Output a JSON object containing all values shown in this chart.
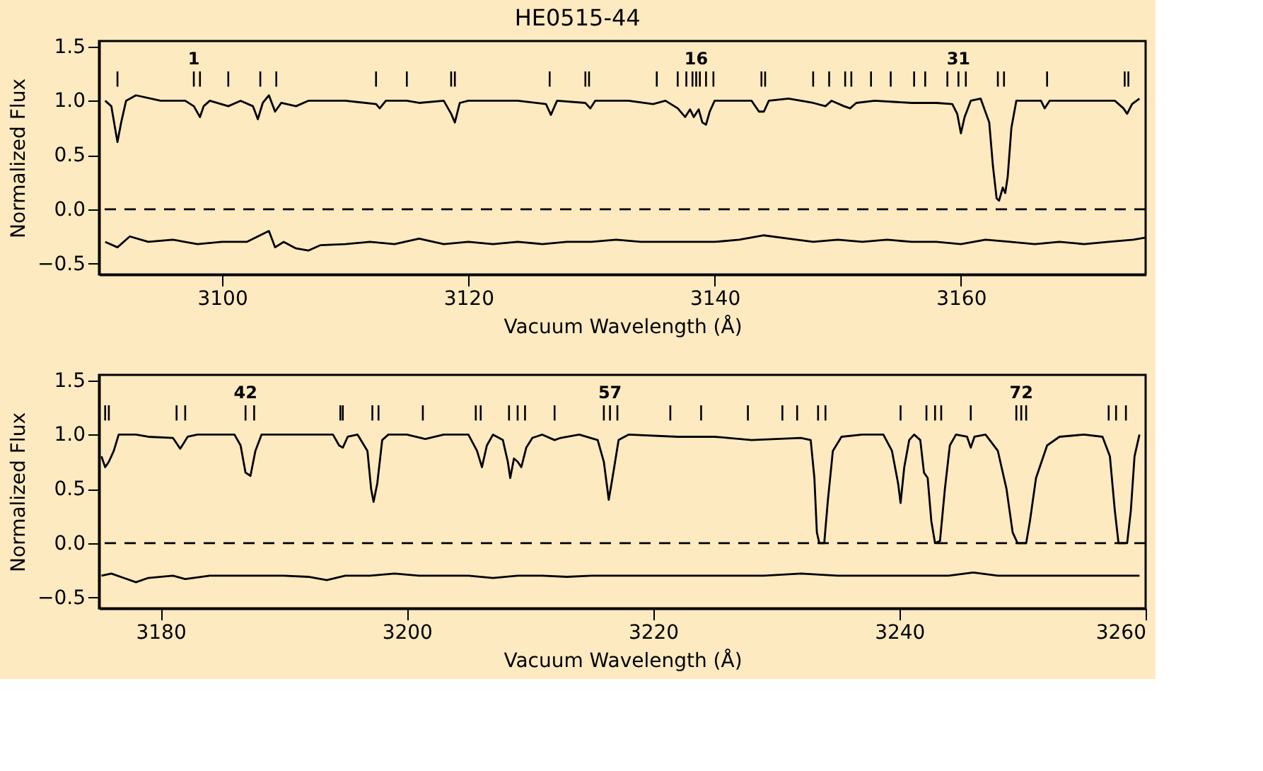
{
  "chart_data": [
    {
      "type": "line",
      "title": "HE0515-44",
      "xlabel": "Vacuum Wavelength (Å)",
      "ylabel": "Normalized Flux",
      "xlim": [
        3090,
        3175
      ],
      "xticks": [
        3100,
        3120,
        3140,
        3160
      ],
      "ylim": [
        -0.6,
        1.55
      ],
      "yticks": [
        {
          "value": -0.5,
          "label": "−0.5"
        },
        {
          "value": 0,
          "label": "0.0"
        },
        {
          "value": 0.5,
          "label": "0.5"
        },
        {
          "value": 1,
          "label": "1.0"
        },
        {
          "value": 1.5,
          "label": "1.5"
        }
      ],
      "grid": false,
      "line_style": "solid",
      "series": [
        {
          "color": "#000000",
          "x": [
            3090.5,
            3091,
            3091.3,
            3091.5,
            3091.8,
            3092.2,
            3093,
            3095,
            3097,
            3097.7,
            3098.2,
            3098.5,
            3099,
            3100.5,
            3101.5,
            3102.5,
            3102.9,
            3103.3,
            3103.8,
            3104.3,
            3104.8,
            3106,
            3107,
            3110,
            3112.5,
            3112.8,
            3113.3,
            3115,
            3116,
            3118,
            3118.6,
            3118.9,
            3119.3,
            3120,
            3124,
            3126.3,
            3126.7,
            3127.2,
            3129.5,
            3129.9,
            3130.3,
            3133,
            3135,
            3136,
            3137,
            3137.6,
            3138,
            3138.3,
            3138.7,
            3139,
            3139.3,
            3139.6,
            3140,
            3143,
            3143.6,
            3144,
            3144.4,
            3146,
            3148,
            3149,
            3149.5,
            3150.5,
            3151,
            3151.5,
            3153,
            3156,
            3158,
            3159.3,
            3159.7,
            3160,
            3160.3,
            3160.8,
            3161.6,
            3162.3,
            3162.6,
            3162.9,
            3163.1,
            3163.4,
            3163.6,
            3163.8,
            3164.1,
            3164.5,
            3166.5,
            3166.8,
            3167.2,
            3170,
            3172.5,
            3173.2,
            3173.5,
            3173.9,
            3174.5
          ],
          "values": [
            1.0,
            0.95,
            0.75,
            0.62,
            0.8,
            1.0,
            1.05,
            1.0,
            1.0,
            0.95,
            0.85,
            0.95,
            1.0,
            0.95,
            1.0,
            0.95,
            0.83,
            0.98,
            1.05,
            0.9,
            0.98,
            0.95,
            1.0,
            1.0,
            0.97,
            0.93,
            1.0,
            1.0,
            0.98,
            1.0,
            0.88,
            0.8,
            0.98,
            1.0,
            1.0,
            0.97,
            0.87,
            1.0,
            0.98,
            0.93,
            1.0,
            1.0,
            0.97,
            1.0,
            0.93,
            0.85,
            0.92,
            0.85,
            0.92,
            0.8,
            0.78,
            0.9,
            1.0,
            1.0,
            0.9,
            0.9,
            1.0,
            1.02,
            0.98,
            0.95,
            1.0,
            0.95,
            0.93,
            0.98,
            1.0,
            0.98,
            0.98,
            0.97,
            0.88,
            0.7,
            0.85,
            1.0,
            1.02,
            0.8,
            0.4,
            0.1,
            0.08,
            0.2,
            0.15,
            0.3,
            0.75,
            1.0,
            1.0,
            0.93,
            1.0,
            1.0,
            1.0,
            0.93,
            0.88,
            0.97,
            1.02
          ]
        },
        {
          "color": "#000000",
          "x": [
            3090.5,
            3091.5,
            3092.5,
            3094,
            3096,
            3098,
            3100,
            3102,
            3103.8,
            3104.3,
            3105,
            3106,
            3107,
            3108,
            3110,
            3112,
            3114,
            3116,
            3118,
            3120,
            3122,
            3124,
            3126,
            3128,
            3130,
            3132,
            3134,
            3136,
            3138,
            3140,
            3142,
            3144,
            3146,
            3148,
            3150,
            3152,
            3154,
            3156,
            3158,
            3160,
            3162,
            3164,
            3166,
            3168,
            3170,
            3172,
            3174,
            3175
          ],
          "values": [
            -0.3,
            -0.35,
            -0.25,
            -0.3,
            -0.28,
            -0.32,
            -0.3,
            -0.3,
            -0.2,
            -0.35,
            -0.3,
            -0.36,
            -0.38,
            -0.33,
            -0.32,
            -0.3,
            -0.32,
            -0.27,
            -0.32,
            -0.3,
            -0.32,
            -0.3,
            -0.32,
            -0.3,
            -0.3,
            -0.28,
            -0.3,
            -0.3,
            -0.3,
            -0.3,
            -0.28,
            -0.24,
            -0.27,
            -0.3,
            -0.28,
            -0.3,
            -0.28,
            -0.3,
            -0.3,
            -0.32,
            -0.28,
            -0.3,
            -0.32,
            -0.3,
            -0.32,
            -0.3,
            -0.28,
            -0.26
          ]
        },
        {
          "type": "bar",
          "color": "#000000",
          "x": [
            3091.5,
            3097.7,
            3098.2,
            3100.5,
            3103.1,
            3104.4,
            3112.5,
            3115.0,
            3118.6,
            3118.9,
            3126.6,
            3129.5,
            3129.8,
            3135.3,
            3137.0,
            3137.7,
            3138.2,
            3138.5,
            3138.8,
            3139.3,
            3139.9,
            3143.8,
            3144.1,
            3148.0,
            3149.3,
            3150.6,
            3151.1,
            3152.7,
            3154.3,
            3156.2,
            3157.1,
            3158.9,
            3159.8,
            3160.4,
            3163.0,
            3163.5,
            3167.0,
            3173.3,
            3173.6
          ],
          "values": [
            0.14,
            0.14,
            0.14,
            0.14,
            0.14,
            0.14,
            0.14,
            0.14,
            0.14,
            0.14,
            0.14,
            0.14,
            0.14,
            0.14,
            0.14,
            0.14,
            0.14,
            0.14,
            0.14,
            0.14,
            0.14,
            0.14,
            0.14,
            0.14,
            0.14,
            0.14,
            0.14,
            0.14,
            0.14,
            0.14,
            0.14,
            0.14,
            0.14,
            0.14,
            0.14,
            0.14,
            0.14,
            0.14,
            0.14
          ],
          "base": [
            1.13,
            1.13,
            1.13,
            1.13,
            1.13,
            1.13,
            1.13,
            1.13,
            1.13,
            1.13,
            1.13,
            1.13,
            1.13,
            1.13,
            1.13,
            1.13,
            1.13,
            1.13,
            1.13,
            1.13,
            1.13,
            1.13,
            1.13,
            1.13,
            1.13,
            1.13,
            1.13,
            1.13,
            1.13,
            1.13,
            1.13,
            1.13,
            1.13,
            1.13,
            1.13,
            1.13,
            1.13,
            1.13,
            1.13
          ]
        }
      ],
      "ref_lines": [
        {
          "axis": "y",
          "value": 0,
          "label": null,
          "color": "#000000",
          "line_style": "dashed"
        }
      ],
      "annotations": [
        {
          "text": "1",
          "x": 3097.7,
          "y": 1.27
        },
        {
          "text": "16",
          "x": 3138.5,
          "y": 1.27
        },
        {
          "text": "31",
          "x": 3159.8,
          "y": 1.27
        }
      ]
    },
    {
      "type": "line",
      "xlabel": "Vacuum Wavelength (Å)",
      "ylabel": "Normalized Flux",
      "xlim": [
        3175,
        3260
      ],
      "xticks": [
        3180,
        3200,
        3220,
        3240,
        3260
      ],
      "ylim": [
        -0.6,
        1.55
      ],
      "yticks": [
        {
          "value": -0.5,
          "label": "−0.5"
        },
        {
          "value": 0,
          "label": "0.0"
        },
        {
          "value": 0.5,
          "label": "0.5"
        },
        {
          "value": 1,
          "label": "1.0"
        },
        {
          "value": 1.5,
          "label": "1.5"
        }
      ],
      "grid": false,
      "line_style": "solid",
      "series": [
        {
          "color": "#000000",
          "x": [
            3175.2,
            3175.5,
            3175.8,
            3176.2,
            3176.6,
            3178,
            3179,
            3181,
            3181.6,
            3182.2,
            3183,
            3186,
            3186.5,
            3186.9,
            3187.3,
            3187.7,
            3188.2,
            3191,
            3194,
            3194.5,
            3194.8,
            3195.2,
            3196,
            3196.8,
            3197.1,
            3197.3,
            3197.6,
            3198,
            3198.5,
            3200,
            3201.5,
            3203,
            3205,
            3205.7,
            3206.1,
            3206.5,
            3207,
            3207.8,
            3208.2,
            3208.4,
            3208.7,
            3209.0,
            3209.3,
            3209.7,
            3210.2,
            3211,
            3212,
            3212.5,
            3214,
            3215.5,
            3216,
            3216.4,
            3216.7,
            3217.2,
            3218,
            3222,
            3225,
            3228,
            3232,
            3232.8,
            3233.1,
            3233.3,
            3233.5,
            3233.9,
            3234.2,
            3234.6,
            3235.3,
            3237,
            3238.7,
            3239.4,
            3239.9,
            3240.1,
            3240.4,
            3240.8,
            3241.2,
            3241.7,
            3242.0,
            3242.3,
            3242.6,
            3242.9,
            3243.3,
            3243.7,
            3244.1,
            3244.6,
            3245.5,
            3245.8,
            3246.1,
            3247,
            3248,
            3248.7,
            3249.2,
            3249.6,
            3250.3,
            3250.6,
            3251.1,
            3252,
            3253,
            3255,
            3256.5,
            3257.1,
            3257.5,
            3257.8,
            3258.5,
            3258.8,
            3259.1,
            3259.5
          ],
          "values": [
            0.8,
            0.7,
            0.75,
            0.85,
            1.0,
            1.0,
            0.98,
            0.97,
            0.87,
            0.98,
            1.0,
            1.0,
            0.9,
            0.65,
            0.62,
            0.85,
            1.0,
            1.0,
            1.0,
            0.9,
            0.88,
            0.98,
            1.0,
            0.85,
            0.5,
            0.38,
            0.55,
            0.95,
            1.0,
            1.0,
            0.96,
            1.0,
            1.0,
            0.85,
            0.7,
            0.9,
            1.0,
            0.95,
            0.75,
            0.6,
            0.78,
            0.75,
            0.7,
            0.88,
            0.97,
            1.0,
            0.95,
            0.97,
            1.0,
            0.95,
            0.75,
            0.4,
            0.6,
            0.95,
            1.0,
            0.98,
            0.98,
            0.95,
            0.97,
            0.95,
            0.6,
            0.1,
            0.0,
            0.0,
            0.4,
            0.85,
            0.98,
            1.0,
            1.0,
            0.85,
            0.55,
            0.37,
            0.7,
            0.95,
            1.0,
            0.95,
            0.65,
            0.6,
            0.2,
            0.0,
            0.02,
            0.5,
            0.9,
            1.0,
            0.98,
            0.88,
            0.98,
            1.0,
            0.85,
            0.5,
            0.1,
            0.0,
            0.0,
            0.2,
            0.6,
            0.9,
            0.98,
            1.0,
            0.98,
            0.8,
            0.3,
            0.0,
            0.0,
            0.3,
            0.8,
            1.0
          ]
        },
        {
          "color": "#000000",
          "x": [
            3175.2,
            3176,
            3177,
            3178,
            3179,
            3181,
            3182,
            3184,
            3186,
            3188,
            3190,
            3192,
            3193.5,
            3195,
            3197,
            3199,
            3201,
            3203,
            3205,
            3207,
            3209,
            3211,
            3213,
            3215,
            3217,
            3220,
            3223,
            3226,
            3229,
            3232,
            3235,
            3238,
            3241,
            3244,
            3246,
            3248,
            3251,
            3254,
            3257,
            3259.5
          ],
          "values": [
            -0.3,
            -0.28,
            -0.32,
            -0.36,
            -0.32,
            -0.3,
            -0.33,
            -0.3,
            -0.3,
            -0.3,
            -0.3,
            -0.31,
            -0.34,
            -0.3,
            -0.3,
            -0.28,
            -0.3,
            -0.3,
            -0.3,
            -0.32,
            -0.3,
            -0.3,
            -0.31,
            -0.3,
            -0.3,
            -0.3,
            -0.3,
            -0.3,
            -0.3,
            -0.28,
            -0.3,
            -0.3,
            -0.3,
            -0.3,
            -0.27,
            -0.3,
            -0.3,
            -0.3,
            -0.3,
            -0.3
          ]
        },
        {
          "type": "bar",
          "color": "#000000",
          "x": [
            3175.5,
            3175.8,
            3181.3,
            3182.0,
            3186.9,
            3187.6,
            3194.6,
            3194.8,
            3197.2,
            3197.7,
            3201.3,
            3205.6,
            3206.0,
            3208.3,
            3209.0,
            3209.6,
            3212.0,
            3216.0,
            3216.5,
            3217.1,
            3221.4,
            3223.9,
            3227.7,
            3230.5,
            3231.7,
            3233.4,
            3234.0,
            3240.1,
            3242.2,
            3242.9,
            3243.4,
            3245.8,
            3249.5,
            3249.9,
            3250.3,
            3257.0,
            3257.6,
            3258.4
          ],
          "values": [
            0.14,
            0.14,
            0.14,
            0.14,
            0.14,
            0.14,
            0.14,
            0.14,
            0.14,
            0.14,
            0.14,
            0.14,
            0.14,
            0.14,
            0.14,
            0.14,
            0.14,
            0.14,
            0.14,
            0.14,
            0.14,
            0.14,
            0.14,
            0.14,
            0.14,
            0.14,
            0.14,
            0.14,
            0.14,
            0.14,
            0.14,
            0.14,
            0.14,
            0.14,
            0.14,
            0.14,
            0.14,
            0.14
          ],
          "base": [
            1.13,
            1.13,
            1.13,
            1.13,
            1.13,
            1.13,
            1.13,
            1.13,
            1.13,
            1.13,
            1.13,
            1.13,
            1.13,
            1.13,
            1.13,
            1.13,
            1.13,
            1.13,
            1.13,
            1.13,
            1.13,
            1.13,
            1.13,
            1.13,
            1.13,
            1.13,
            1.13,
            1.13,
            1.13,
            1.13,
            1.13,
            1.13,
            1.13,
            1.13,
            1.13,
            1.13,
            1.13,
            1.13
          ]
        }
      ],
      "ref_lines": [
        {
          "axis": "y",
          "value": 0,
          "label": null,
          "color": "#000000",
          "line_style": "dashed"
        }
      ],
      "annotations": [
        {
          "text": "42",
          "x": 3186.9,
          "y": 1.27
        },
        {
          "text": "57",
          "x": 3216.5,
          "y": 1.27
        },
        {
          "text": "72",
          "x": 3249.9,
          "y": 1.27
        }
      ]
    }
  ]
}
